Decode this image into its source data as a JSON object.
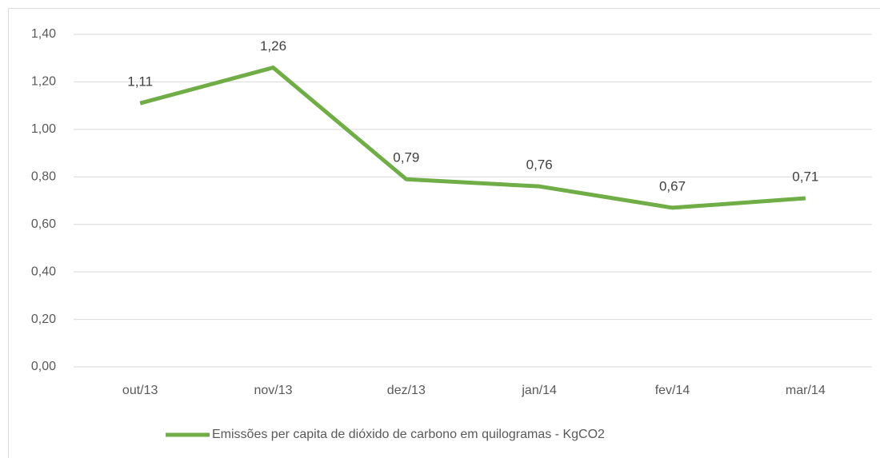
{
  "chart_data": {
    "type": "line",
    "categories": [
      "out/13",
      "nov/13",
      "dez/13",
      "jan/14",
      "fev/14",
      "mar/14"
    ],
    "series": [
      {
        "name": "Emissões per capita de dióxido de carbono em quilogramas - KgCO2",
        "color": "#70ad47",
        "values": [
          1.11,
          1.26,
          0.79,
          0.76,
          0.67,
          0.71
        ],
        "value_labels": [
          "1,11",
          "1,26",
          "0,79",
          "0,76",
          "0,67",
          "0,71"
        ]
      }
    ],
    "ylim": [
      0,
      1.4
    ],
    "yticks": [
      {
        "value": 0,
        "label": "0,00"
      },
      {
        "value": 0.2,
        "label": "0,20"
      },
      {
        "value": 0.4,
        "label": "0,40"
      },
      {
        "value": 0.6,
        "label": "0,60"
      },
      {
        "value": 0.8,
        "label": "0,80"
      },
      {
        "value": 1.0,
        "label": "1,00"
      },
      {
        "value": 1.2,
        "label": "1,20"
      },
      {
        "value": 1.4,
        "label": "1,40"
      }
    ],
    "grid": true,
    "legend": "bottom"
  }
}
